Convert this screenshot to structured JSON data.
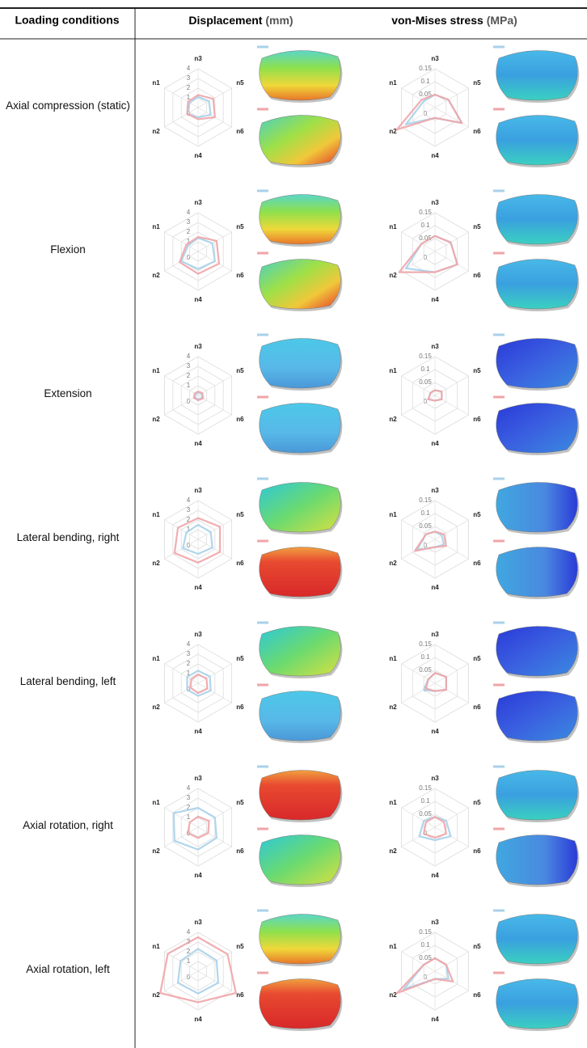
{
  "table": {
    "header": {
      "conditions": "Loading conditions",
      "displacement": "Displacement",
      "displacement_unit": "(mm)",
      "stress": "von-Mises stress",
      "stress_unit": "(MPa)"
    },
    "conditions": [
      "Axial compression (static)",
      "Flexion",
      "Extension",
      "Lateral bending, right",
      "Lateral bending, left",
      "Axial rotation, right",
      "Axial rotation, left"
    ]
  },
  "chart_data": [
    {
      "type": "radar",
      "categories": [
        "n3",
        "n5",
        "n6",
        "n4",
        "n2",
        "n1"
      ],
      "rlim": [
        0,
        4
      ],
      "rticks": [
        0,
        1,
        2,
        3,
        4
      ],
      "grid": true,
      "series": [
        {
          "color": "#a9d1ea",
          "values": [
            1.1,
            1.3,
            1.5,
            1.0,
            1.3,
            1.0
          ]
        },
        {
          "color": "#f0a5a8",
          "values": [
            1.3,
            1.8,
            2.0,
            1.2,
            1.3,
            1.2
          ]
        }
      ]
    },
    {
      "type": "radar",
      "categories": [
        "n3",
        "n5",
        "n6",
        "n4",
        "n2",
        "n1"
      ],
      "rlim": [
        0,
        0.15
      ],
      "rticks": [
        0,
        0.05,
        0.1,
        0.15
      ],
      "grid": true,
      "series": [
        {
          "color": "#a9d1ea",
          "values": [
            0.05,
            0.06,
            0.12,
            0.04,
            0.13,
            0.05
          ]
        },
        {
          "color": "#f0a5a8",
          "values": [
            0.05,
            0.06,
            0.12,
            0.04,
            0.17,
            0.06
          ]
        }
      ]
    },
    {
      "type": "radar",
      "categories": [
        "n3",
        "n5",
        "n6",
        "n4",
        "n2",
        "n1"
      ],
      "rlim": [
        0,
        4
      ],
      "rticks": [
        0,
        1,
        2,
        3,
        4
      ],
      "grid": true,
      "series": [
        {
          "color": "#a9d1ea",
          "values": [
            1.4,
            1.7,
            2.0,
            1.8,
            2.0,
            1.2
          ]
        },
        {
          "color": "#f0a5a8",
          "values": [
            1.5,
            2.2,
            2.5,
            2.3,
            2.2,
            1.4
          ]
        }
      ]
    },
    {
      "type": "radar",
      "categories": [
        "n3",
        "n5",
        "n6",
        "n4",
        "n2",
        "n1"
      ],
      "rlim": [
        0,
        0.15
      ],
      "rticks": [
        0,
        0.05,
        0.1,
        0.15
      ],
      "grid": true,
      "series": [
        {
          "color": "#a9d1ea",
          "values": [
            0.06,
            0.07,
            0.1,
            0.08,
            0.13,
            0.06
          ]
        },
        {
          "color": "#f0a5a8",
          "values": [
            0.06,
            0.07,
            0.1,
            0.08,
            0.16,
            0.06
          ]
        }
      ]
    },
    {
      "type": "radar",
      "categories": [
        "n3",
        "n5",
        "n6",
        "n4",
        "n2",
        "n1"
      ],
      "rlim": [
        0,
        4
      ],
      "rticks": [
        0,
        1,
        2,
        3,
        4
      ],
      "grid": true,
      "series": [
        {
          "color": "#a9d1ea",
          "values": [
            0.3,
            0.4,
            0.5,
            0.4,
            0.4,
            0.3
          ]
        },
        {
          "color": "#f0a5a8",
          "values": [
            0.4,
            0.5,
            0.6,
            0.5,
            0.5,
            0.4
          ]
        }
      ]
    },
    {
      "type": "radar",
      "categories": [
        "n3",
        "n5",
        "n6",
        "n4",
        "n2",
        "n1"
      ],
      "rlim": [
        0,
        0.15
      ],
      "rticks": [
        0,
        0.05,
        0.1,
        0.15
      ],
      "grid": true,
      "series": [
        {
          "color": "#a9d1ea",
          "values": [
            0.02,
            0.03,
            0.03,
            0.02,
            0.03,
            0.02
          ]
        },
        {
          "color": "#f0a5a8",
          "values": [
            0.02,
            0.03,
            0.03,
            0.02,
            0.03,
            0.02
          ]
        }
      ]
    },
    {
      "type": "radar",
      "categories": [
        "n3",
        "n5",
        "n6",
        "n4",
        "n2",
        "n1"
      ],
      "rlim": [
        0,
        4
      ],
      "rticks": [
        0,
        1,
        2,
        3,
        4
      ],
      "grid": true,
      "series": [
        {
          "color": "#a9d1ea",
          "values": [
            1.5,
            1.5,
            1.7,
            1.5,
            1.8,
            1.4
          ]
        },
        {
          "color": "#f0a5a8",
          "values": [
            2.2,
            2.6,
            2.6,
            2.4,
            2.8,
            2.4
          ]
        }
      ]
    },
    {
      "type": "radar",
      "categories": [
        "n3",
        "n5",
        "n6",
        "n4",
        "n2",
        "n1"
      ],
      "rlim": [
        0,
        0.15
      ],
      "rticks": [
        0,
        0.05,
        0.1,
        0.15
      ],
      "grid": true,
      "series": [
        {
          "color": "#a9d1ea",
          "values": [
            0.03,
            0.03,
            0.04,
            0.03,
            0.08,
            0.04
          ]
        },
        {
          "color": "#f0a5a8",
          "values": [
            0.03,
            0.04,
            0.05,
            0.03,
            0.09,
            0.04
          ]
        }
      ]
    },
    {
      "type": "radar",
      "categories": [
        "n3",
        "n5",
        "n6",
        "n4",
        "n2",
        "n1"
      ],
      "rlim": [
        0,
        4
      ],
      "rticks": [
        0,
        1,
        2,
        3,
        4
      ],
      "grid": true,
      "series": [
        {
          "color": "#a9d1ea",
          "values": [
            1.3,
            1.4,
            1.5,
            1.3,
            1.3,
            1.3
          ]
        },
        {
          "color": "#f0a5a8",
          "values": [
            0.9,
            1.0,
            1.1,
            1.0,
            0.9,
            0.8
          ]
        }
      ]
    },
    {
      "type": "radar",
      "categories": [
        "n3",
        "n5",
        "n6",
        "n4",
        "n2",
        "n1"
      ],
      "rlim": [
        0,
        0.15
      ],
      "rticks": [
        0,
        0.05,
        0.1,
        0.15
      ],
      "grid": true,
      "series": [
        {
          "color": "#a9d1ea",
          "values": [
            0.04,
            0.05,
            0.05,
            0.03,
            0.05,
            0.03
          ]
        },
        {
          "color": "#f0a5a8",
          "values": [
            0.04,
            0.05,
            0.05,
            0.03,
            0.04,
            0.03
          ]
        }
      ]
    },
    {
      "type": "radar",
      "categories": [
        "n3",
        "n5",
        "n6",
        "n4",
        "n2",
        "n1"
      ],
      "rlim": [
        0,
        4
      ],
      "rticks": [
        0,
        1,
        2,
        3,
        4
      ],
      "grid": true,
      "series": [
        {
          "color": "#a9d1ea",
          "values": [
            2.0,
            2.0,
            2.2,
            2.3,
            2.8,
            2.9
          ]
        },
        {
          "color": "#f0a5a8",
          "values": [
            1.1,
            1.3,
            1.2,
            1.1,
            1.2,
            1.0
          ]
        }
      ]
    },
    {
      "type": "radar",
      "categories": [
        "n3",
        "n5",
        "n6",
        "n4",
        "n2",
        "n1"
      ],
      "rlim": [
        0,
        0.15
      ],
      "rticks": [
        0,
        0.05,
        0.1,
        0.15
      ],
      "grid": true,
      "series": [
        {
          "color": "#a9d1ea",
          "values": [
            0.04,
            0.05,
            0.07,
            0.05,
            0.07,
            0.05
          ]
        },
        {
          "color": "#f0a5a8",
          "values": [
            0.04,
            0.04,
            0.05,
            0.04,
            0.05,
            0.04
          ]
        }
      ]
    },
    {
      "type": "radar",
      "categories": [
        "n3",
        "n5",
        "n6",
        "n4",
        "n2",
        "n1"
      ],
      "rlim": [
        0,
        4
      ],
      "rticks": [
        0,
        1,
        2,
        3,
        4
      ],
      "grid": true,
      "series": [
        {
          "color": "#a9d1ea",
          "values": [
            2.3,
            2.2,
            2.4,
            2.3,
            2.4,
            2.1
          ]
        },
        {
          "color": "#f0a5a8",
          "values": [
            3.5,
            3.5,
            4.5,
            3.2,
            4.5,
            3.6
          ]
        }
      ]
    },
    {
      "type": "radar",
      "categories": [
        "n3",
        "n5",
        "n6",
        "n4",
        "n2",
        "n1"
      ],
      "rlim": [
        0,
        0.15
      ],
      "rticks": [
        0,
        0.05,
        0.1,
        0.15
      ],
      "grid": true,
      "series": [
        {
          "color": "#a9d1ea",
          "values": [
            0.05,
            0.05,
            0.06,
            0.03,
            0.14,
            0.05
          ]
        },
        {
          "color": "#f0a5a8",
          "values": [
            0.05,
            0.05,
            0.08,
            0.03,
            0.17,
            0.05
          ]
        }
      ]
    }
  ]
}
